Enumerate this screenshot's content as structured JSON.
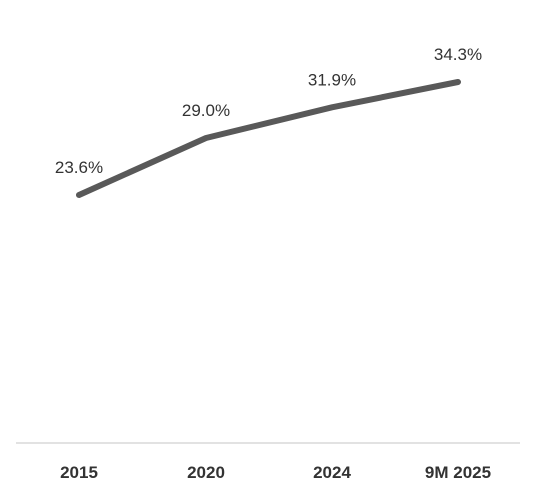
{
  "chart_data": {
    "type": "line",
    "categories": [
      "2015",
      "2020",
      "2024",
      "9M 2025"
    ],
    "series": [
      {
        "values": [
          23.6,
          29.0,
          31.9,
          34.3
        ],
        "labels": [
          "23.6%",
          "29.0%",
          "31.9%",
          "34.3%"
        ],
        "color": "#595959"
      }
    ],
    "title": "",
    "xlabel": "",
    "ylabel": "",
    "ylim": [
      0,
      45
    ],
    "grid": false,
    "legend": "none",
    "axis_color": "#d9d9d9"
  }
}
